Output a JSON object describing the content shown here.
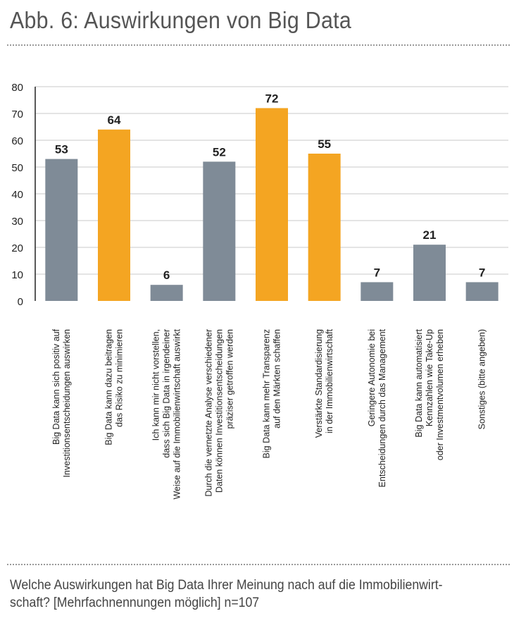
{
  "title": "Abb. 6: Auswirkungen von Big Data",
  "caption": "Welche Auswirkungen hat Big Data Ihrer Meinung nach auf die Immobilienwirt-schaft? [Mehrfachnennungen möglich] n=107",
  "colors": {
    "gray": "#7f8b97",
    "orange": "#f4a522",
    "grid": "#c8c8c8",
    "axis": "#222222"
  },
  "chart_data": {
    "type": "bar",
    "ylim": [
      0,
      80
    ],
    "yticks": [
      0,
      10,
      20,
      30,
      40,
      50,
      60,
      70,
      80
    ],
    "grid": true,
    "categories": [
      [
        "Big Data kann sich positiv auf",
        "Investitionsentscheidungen auswirken"
      ],
      [
        "Big Data kann dazu beitragen",
        "das Risiko zu minimieren"
      ],
      [
        "Ich kann mir nicht vorstellen,",
        "dass sich Big Data in irgendeiner",
        "Weise auf die Immobilienwirtschaft auswirkt"
      ],
      [
        "Durch die vernetzte Analyse verschiedener",
        "Daten können Investitionsentscheidungen",
        "präziser getroffen werden"
      ],
      [
        "Big Data kann mehr Transparenz",
        "auf den Märkten schaffen"
      ],
      [
        "Verstärkte Standardisierung",
        "in der Immobilienwirtschaft"
      ],
      [
        "Geringere Autonomie bei",
        "Entscheidungen durch das Management"
      ],
      [
        "Big Data kann automatisiert",
        "Kennzahlen wie Take-Up",
        "oder Investmentvolumen erheben"
      ],
      [
        "Sonstiges (bitte angeben)"
      ]
    ],
    "values": [
      53,
      64,
      6,
      52,
      72,
      55,
      7,
      21,
      7
    ],
    "bar_colors": [
      "gray",
      "orange",
      "gray",
      "gray",
      "orange",
      "orange",
      "gray",
      "gray",
      "gray"
    ]
  }
}
